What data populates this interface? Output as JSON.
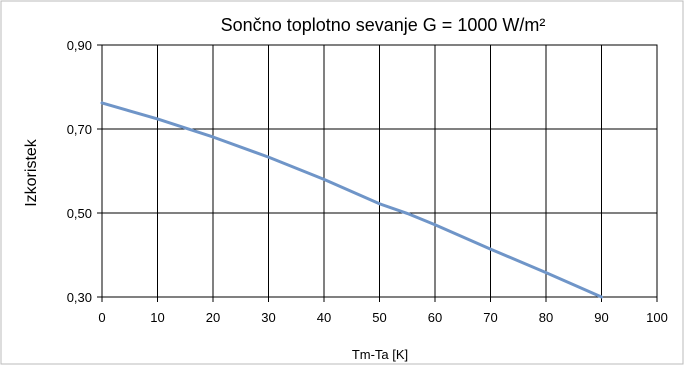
{
  "chart_data": {
    "type": "line",
    "title": "Sončno toplotno sevanje G = 1000 W/m²",
    "xlabel": "Tm-Ta [K]",
    "ylabel": "Izkoristek",
    "xlim": [
      0,
      100
    ],
    "ylim": [
      0.3,
      0.9
    ],
    "xticks": [
      "0",
      "10",
      "20",
      "30",
      "40",
      "50",
      "60",
      "70",
      "80",
      "90",
      "100"
    ],
    "yticks": [
      "0,30",
      "0,50",
      "0,70",
      "0,90"
    ],
    "grid": true,
    "series": [
      {
        "color": "#6f95c8",
        "x": [
          0,
          10,
          20,
          30,
          40,
          50,
          55,
          60,
          70,
          80,
          90
        ],
        "y": [
          0.762,
          0.724,
          0.681,
          0.633,
          0.58,
          0.522,
          0.499,
          0.472,
          0.414,
          0.358,
          0.3
        ]
      }
    ]
  }
}
